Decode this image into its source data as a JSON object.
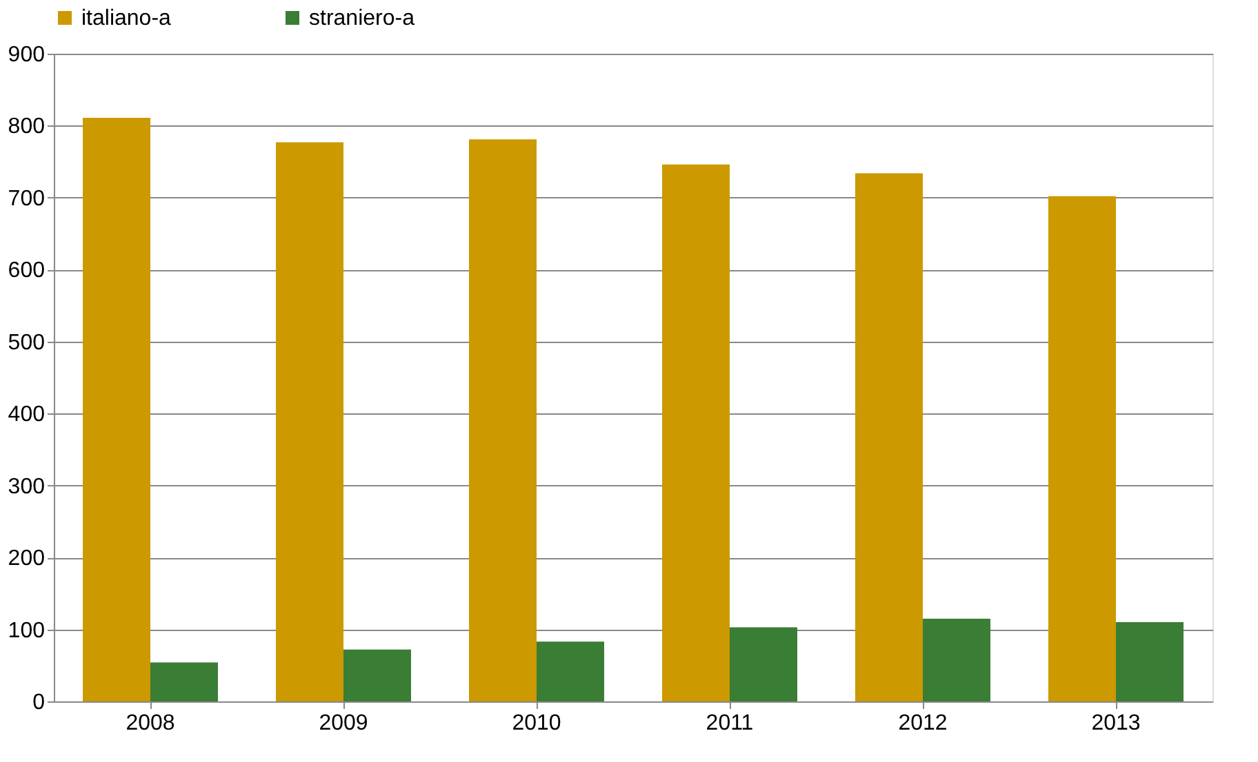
{
  "chart_data": {
    "type": "bar",
    "categories": [
      "2008",
      "2009",
      "2010",
      "2011",
      "2012",
      "2013"
    ],
    "series": [
      {
        "name": "italiano-a",
        "color": "#cc9900",
        "values": [
          811,
          777,
          781,
          746,
          734,
          702
        ]
      },
      {
        "name": "straniero-a",
        "color": "#3a7d34",
        "values": [
          54,
          72,
          83,
          103,
          115,
          110
        ]
      }
    ],
    "ylim": [
      0,
      900
    ],
    "yticks": [
      0,
      100,
      200,
      300,
      400,
      500,
      600,
      700,
      800,
      900
    ],
    "grid": "y",
    "legend": "top"
  }
}
